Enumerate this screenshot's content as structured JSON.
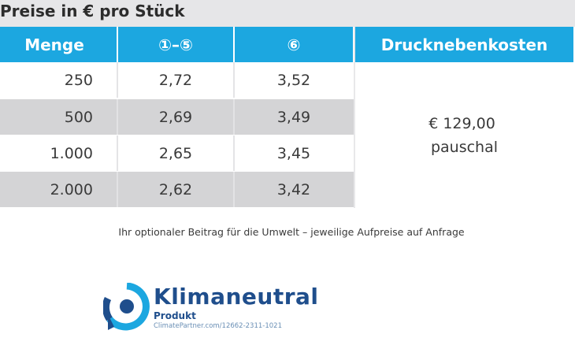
{
  "title": "Preise in € pro Stück",
  "table": {
    "headers": {
      "menge": "Menge",
      "price_1_5": "①–⑤",
      "price_6": "⑥",
      "druck": "Drucknebenkosten"
    },
    "rows": [
      {
        "menge": "250",
        "price_1_5": "2,72",
        "price_6": "3,52"
      },
      {
        "menge": "500",
        "price_1_5": "2,69",
        "price_6": "3,49"
      },
      {
        "menge": "1.000",
        "price_1_5": "2,65",
        "price_6": "3,45"
      },
      {
        "menge": "2.000",
        "price_1_5": "2,62",
        "price_6": "3,42"
      }
    ],
    "druck_value": "€ 129,00",
    "druck_note": "pauschal"
  },
  "note": "Ihr optionaler Beitrag für die Umwelt – jeweilige Aufpreise auf Anfrage",
  "logo": {
    "word": "Klimaneutral",
    "sub": "Produkt",
    "url": "ClimatePartner.com/12662-2311-1021",
    "icon": "climatepartner-logo-icon",
    "color": "#1f4e8c",
    "accent": "#1ca7e0"
  }
}
